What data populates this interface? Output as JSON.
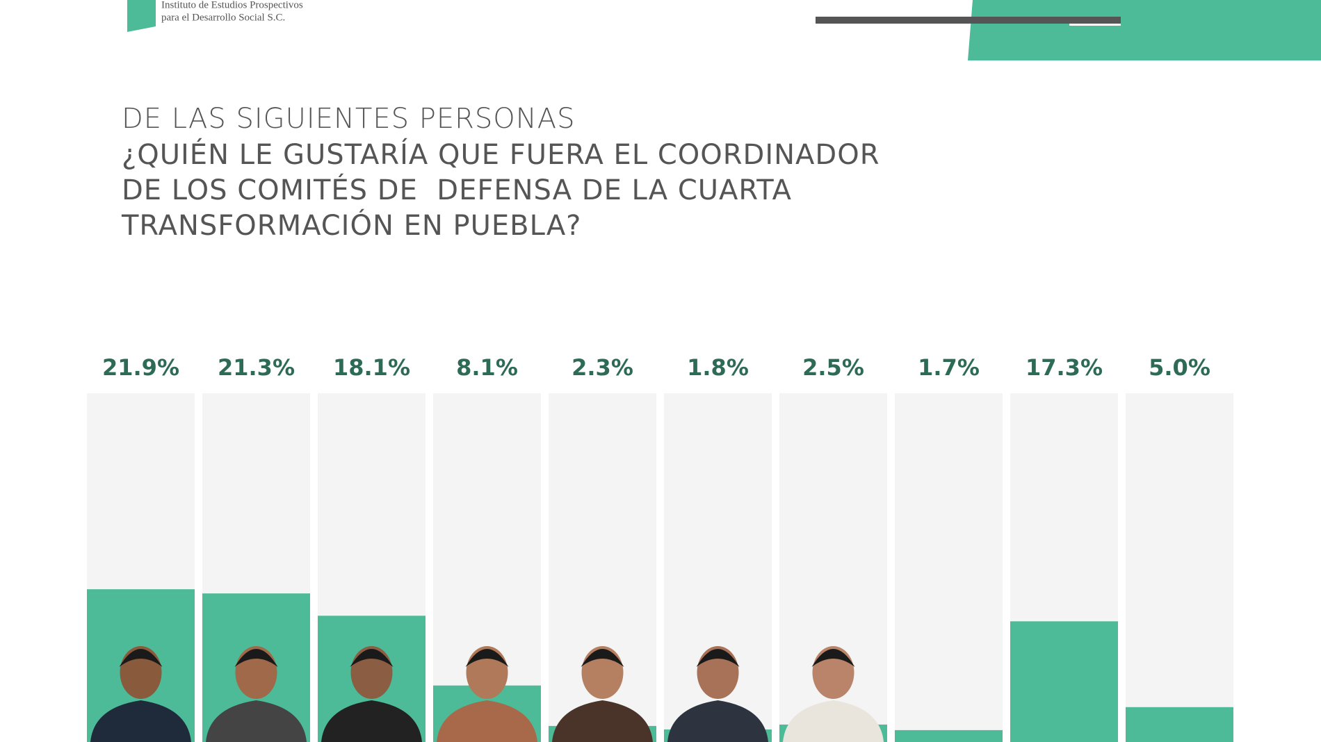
{
  "header": {
    "org_line1": "Instituto de Estudios Prospectivos",
    "org_line2": "para el Desarrollo Social S.C."
  },
  "chart_data": {
    "type": "bar",
    "subtitle": "DE LAS SIGUIENTES PERSONAS",
    "title": [
      "¿QUIÉN LE GUSTARÍA QUE FUERA EL COORDINADOR",
      "DE LOS COMITÉS DE  DEFENSA DE LA CUARTA",
      "TRANSFORMACIÓN EN PUEBLA?"
    ],
    "categories": [
      null,
      null,
      null,
      null,
      null,
      null,
      null,
      null,
      null,
      null
    ],
    "values": [
      21.9,
      21.3,
      18.1,
      8.1,
      2.3,
      1.8,
      2.5,
      1.7,
      17.3,
      5.0
    ],
    "value_labels": [
      "21.9%",
      "21.3%",
      "18.1%",
      "8.1%",
      "2.3%",
      "1.8%",
      "2.5%",
      "1.7%",
      "17.3%",
      "5.0%"
    ],
    "color": "#4dba98",
    "ylim": [
      0,
      50
    ]
  }
}
